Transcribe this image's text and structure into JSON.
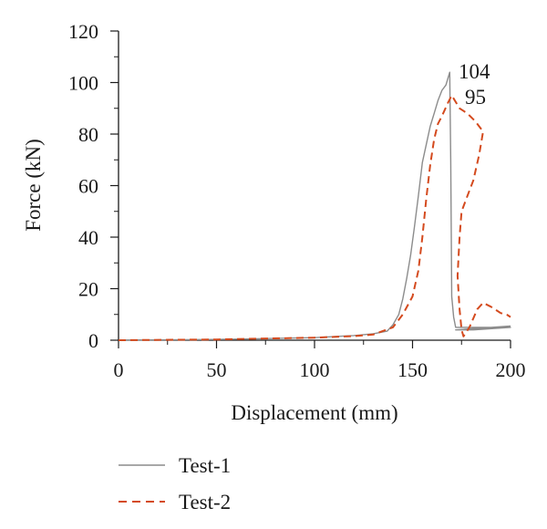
{
  "chart_data": {
    "type": "line",
    "xlabel": "Displacement (mm)",
    "ylabel": "Force (kN)",
    "xlim": [
      0,
      200
    ],
    "ylim": [
      0,
      120
    ],
    "xticks": [
      "0",
      "50",
      "100",
      "150",
      "200"
    ],
    "yticks": [
      "0",
      "20",
      "40",
      "60",
      "80",
      "100",
      "120"
    ],
    "grid": false,
    "legend_position": "bottom-left",
    "series": [
      {
        "name": "Test-1",
        "color": "#8c8c8c",
        "style": "solid",
        "points": [
          [
            0,
            0
          ],
          [
            50,
            0.3
          ],
          [
            100,
            1.0
          ],
          [
            120,
            1.8
          ],
          [
            130,
            2.5
          ],
          [
            137,
            3.5
          ],
          [
            140,
            6
          ],
          [
            143,
            10
          ],
          [
            145,
            16
          ],
          [
            147,
            24
          ],
          [
            149,
            33
          ],
          [
            151,
            44
          ],
          [
            153,
            56
          ],
          [
            155,
            69
          ],
          [
            157,
            76
          ],
          [
            159,
            83
          ],
          [
            161,
            88
          ],
          [
            163,
            93
          ],
          [
            165,
            97
          ],
          [
            167,
            99
          ],
          [
            169,
            104
          ],
          [
            169.5,
            70
          ],
          [
            170,
            17
          ],
          [
            171,
            9
          ],
          [
            172,
            5
          ],
          [
            200,
            5
          ],
          [
            181,
            4
          ],
          [
            172,
            4
          ],
          [
            200,
            5.5
          ]
        ]
      },
      {
        "name": "Test-2",
        "color": "#d44a1e",
        "style": "dashed",
        "points": [
          [
            0,
            0
          ],
          [
            50,
            0.3
          ],
          [
            100,
            1.0
          ],
          [
            120,
            1.6
          ],
          [
            130,
            2.2
          ],
          [
            140,
            5
          ],
          [
            145,
            10
          ],
          [
            150,
            17
          ],
          [
            153,
            27
          ],
          [
            155,
            40
          ],
          [
            157,
            55
          ],
          [
            159,
            68
          ],
          [
            161,
            78
          ],
          [
            163,
            84
          ],
          [
            165,
            87
          ],
          [
            168,
            92
          ],
          [
            170,
            95
          ],
          [
            174,
            90
          ],
          [
            178,
            88
          ],
          [
            182,
            85
          ],
          [
            186,
            81
          ],
          [
            184,
            72
          ],
          [
            181,
            62
          ],
          [
            178,
            56
          ],
          [
            175,
            50
          ],
          [
            174,
            40
          ],
          [
            173,
            25
          ],
          [
            174,
            12
          ],
          [
            175,
            4
          ],
          [
            176,
            1.5
          ],
          [
            179,
            5
          ],
          [
            183,
            12
          ],
          [
            186,
            14.5
          ],
          [
            190,
            13
          ],
          [
            195,
            10.5
          ],
          [
            198,
            10
          ],
          [
            200,
            9
          ]
        ]
      }
    ],
    "annotations": [
      {
        "text": "104"
      },
      {
        "text": "95"
      }
    ]
  }
}
